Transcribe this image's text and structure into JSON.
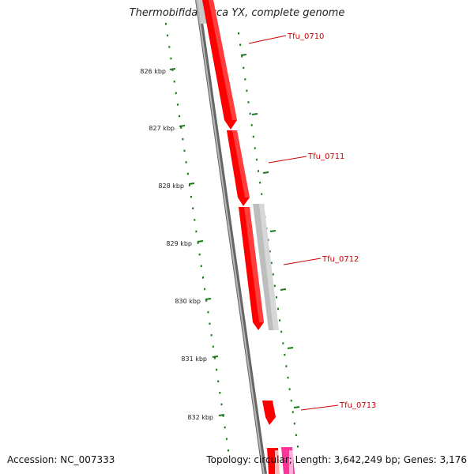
{
  "title": "Thermobifida fusca YX, complete genome",
  "footer": {
    "accession": "Accession: NC_007333",
    "summary": "Topology: circular; Length: 3,642,249 bp; Genes: 3,176"
  },
  "tick_labels": [
    "826 kbp",
    "827 kbp",
    "828 kbp",
    "829 kbp",
    "830 kbp",
    "831 kbp",
    "832 kbp"
  ],
  "genes": [
    {
      "id": "Tfu_0710"
    },
    {
      "id": "Tfu_0711"
    },
    {
      "id": "Tfu_0712"
    },
    {
      "id": "Tfu_0713"
    }
  ],
  "colors": {
    "gene_forward": "#ff0000",
    "gene_other": "#c0c0c0",
    "gene_pink": "#ff3399",
    "backbone": "#808080",
    "ticks": "#1a7a1a",
    "label_text": "#cc0000"
  }
}
